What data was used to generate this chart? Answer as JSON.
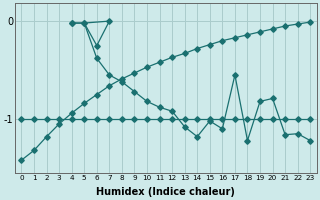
{
  "xlabel": "Humidex (Indice chaleur)",
  "background_color": "#ceeaea",
  "grid_color": "#aacccc",
  "line_color": "#1a7070",
  "ylim": [
    -1.55,
    0.18
  ],
  "yticks": [
    0,
    -1
  ],
  "xticks": [
    0,
    1,
    2,
    3,
    4,
    5,
    6,
    7,
    8,
    9,
    10,
    11,
    12,
    13,
    14,
    15,
    16,
    17,
    18,
    19,
    20,
    21,
    22,
    23
  ],
  "series_upper": {
    "x": [
      4,
      5,
      6,
      7
    ],
    "y": [
      -0.02,
      -0.02,
      -0.25,
      0.0
    ]
  },
  "series_upper_close": {
    "x": [
      5,
      7
    ],
    "y": [
      -0.02,
      0.0
    ]
  },
  "series_main": {
    "x": [
      4,
      5,
      6,
      7,
      8,
      9,
      10,
      11,
      12,
      13,
      14,
      15,
      16,
      17,
      18,
      19,
      20,
      21,
      22,
      23
    ],
    "y": [
      -0.02,
      -0.02,
      -0.38,
      -0.55,
      -0.62,
      -0.72,
      -0.82,
      -0.88,
      -0.92,
      -1.08,
      -1.18,
      -1.02,
      -1.1,
      -0.55,
      -1.22,
      -0.82,
      -0.79,
      -1.16,
      -1.15,
      -1.22
    ]
  },
  "series_flat": {
    "x": [
      0,
      1,
      2,
      3,
      4,
      5,
      6,
      7,
      8,
      9,
      10,
      11,
      12,
      13,
      14,
      15,
      16,
      17,
      18,
      19,
      20,
      21,
      22,
      23
    ],
    "y": [
      -1.0,
      -1.0,
      -1.0,
      -1.0,
      -1.0,
      -1.0,
      -1.0,
      -1.0,
      -1.0,
      -1.0,
      -1.0,
      -1.0,
      -1.0,
      -1.0,
      -1.0,
      -1.0,
      -1.0,
      -1.0,
      -1.0,
      -1.0,
      -1.0,
      -1.0,
      -1.0,
      -1.0
    ]
  },
  "series_diag": {
    "x": [
      0,
      1,
      2,
      3,
      4,
      5,
      6,
      7,
      8,
      9,
      10,
      11,
      12,
      13,
      14,
      15,
      16,
      17,
      18,
      19,
      20,
      21,
      22,
      23
    ],
    "y": [
      -1.42,
      -1.32,
      -1.18,
      -1.05,
      -0.94,
      -0.84,
      -0.75,
      -0.66,
      -0.59,
      -0.53,
      -0.47,
      -0.42,
      -0.37,
      -0.33,
      -0.28,
      -0.24,
      -0.2,
      -0.17,
      -0.14,
      -0.11,
      -0.08,
      -0.05,
      -0.03,
      -0.01
    ]
  }
}
